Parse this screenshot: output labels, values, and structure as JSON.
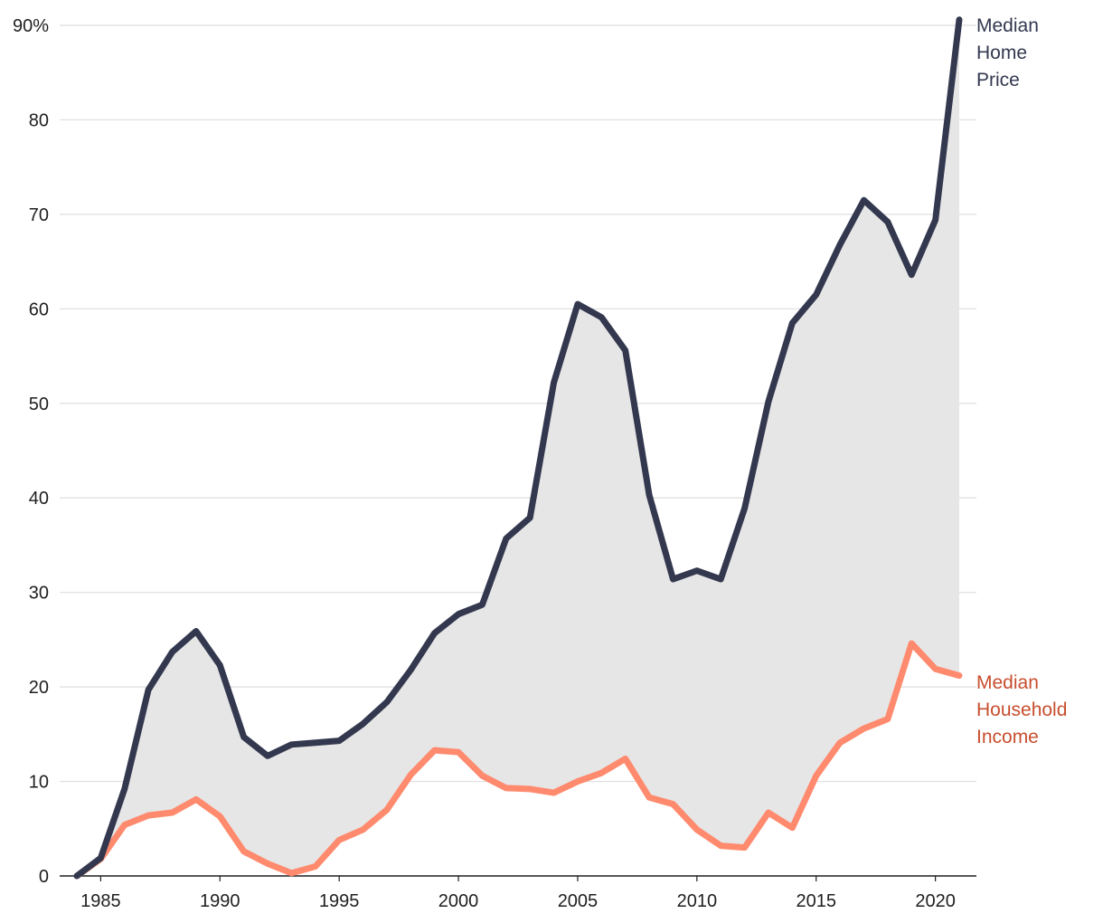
{
  "chart_data": {
    "type": "line",
    "title": "",
    "xlabel": "",
    "ylabel": "",
    "ylim": [
      0,
      90
    ],
    "xlim": [
      1984,
      2021
    ],
    "y_ticks": [
      {
        "value": 0,
        "label": "0"
      },
      {
        "value": 10,
        "label": "10"
      },
      {
        "value": 20,
        "label": "20"
      },
      {
        "value": 30,
        "label": "30"
      },
      {
        "value": 40,
        "label": "40"
      },
      {
        "value": 50,
        "label": "50"
      },
      {
        "value": 60,
        "label": "60"
      },
      {
        "value": 70,
        "label": "70"
      },
      {
        "value": 80,
        "label": "80"
      },
      {
        "value": 90,
        "label": "90%"
      }
    ],
    "x_ticks": [
      {
        "value": 1985,
        "label": "1985"
      },
      {
        "value": 1990,
        "label": "1990"
      },
      {
        "value": 1995,
        "label": "1995"
      },
      {
        "value": 2000,
        "label": "2000"
      },
      {
        "value": 2005,
        "label": "2005"
      },
      {
        "value": 2010,
        "label": "2010"
      },
      {
        "value": 2015,
        "label": "2015"
      },
      {
        "value": 2020,
        "label": "2020"
      }
    ],
    "grid": true,
    "fill_between_series": true,
    "fill_color": "#e6e6e6",
    "grid_color": "#dedede",
    "axis_color": "#1f1f1f",
    "x": [
      1984,
      1985,
      1986,
      1987,
      1988,
      1989,
      1990,
      1991,
      1992,
      1993,
      1994,
      1995,
      1996,
      1997,
      1998,
      1999,
      2000,
      2001,
      2002,
      2003,
      2004,
      2005,
      2006,
      2007,
      2008,
      2009,
      2010,
      2011,
      2012,
      2013,
      2014,
      2015,
      2016,
      2017,
      2018,
      2019,
      2020,
      2021
    ],
    "series": [
      {
        "name": "Median Home Price",
        "label_lines": [
          "Median",
          "Home",
          "Price"
        ],
        "color": "#33384f",
        "values": [
          0,
          1.9,
          9.2,
          19.7,
          23.7,
          25.9,
          22.3,
          14.7,
          12.7,
          13.9,
          14.1,
          14.3,
          16.1,
          18.4,
          21.8,
          25.7,
          27.7,
          28.7,
          35.7,
          37.9,
          52.2,
          60.5,
          59.1,
          55.6,
          40.3,
          31.4,
          32.3,
          31.4,
          38.9,
          50.2,
          58.5,
          61.5,
          66.8,
          71.5,
          69.2,
          63.6,
          69.4,
          90.6
        ]
      },
      {
        "name": "Median Household Income",
        "label_lines": [
          "Median",
          "Household",
          "Income"
        ],
        "color": "#ff8a6e",
        "label_color": "#c84e2e",
        "values": [
          0,
          1.8,
          5.4,
          6.4,
          6.7,
          8.1,
          6.3,
          2.6,
          1.3,
          0.3,
          1.0,
          3.8,
          4.9,
          7.0,
          10.7,
          13.3,
          13.1,
          10.6,
          9.3,
          9.2,
          8.8,
          10.0,
          10.9,
          12.4,
          8.3,
          7.6,
          4.9,
          3.2,
          3.0,
          6.7,
          5.1,
          10.6,
          14.1,
          15.6,
          16.6,
          24.6,
          21.9,
          21.2
        ]
      }
    ]
  }
}
